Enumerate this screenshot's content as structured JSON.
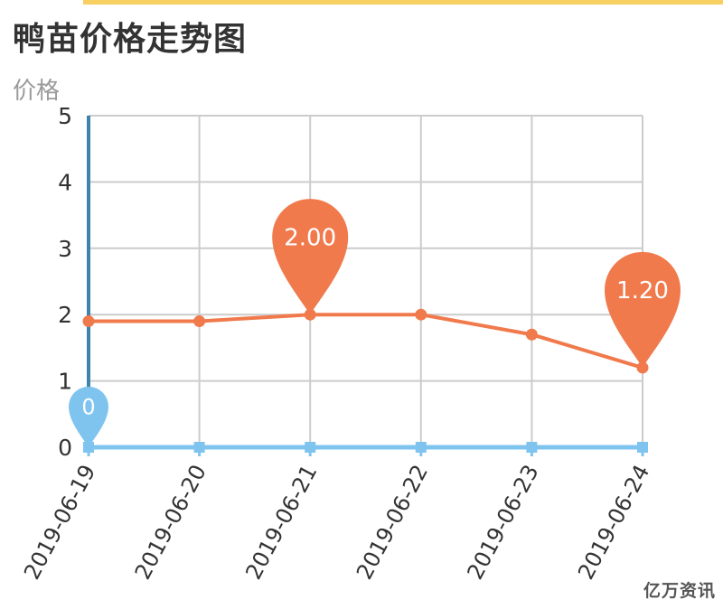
{
  "page": {
    "title": "鸭苗价格走势图",
    "ylabel": "价格",
    "watermark": "亿万资讯"
  },
  "colors": {
    "price_line": "#f07a4c",
    "zero_series": "#7fc4ef",
    "y_axis": "#3d84ad",
    "grid": "#cccccc",
    "top_bar": "#f8cf61"
  },
  "chart_data": {
    "type": "line",
    "title": "鸭苗价格走势图",
    "xlabel": "",
    "ylabel": "价格",
    "categories": [
      "2019-06-19",
      "2019-06-20",
      "2019-06-21",
      "2019-06-22",
      "2019-06-23",
      "2019-06-24"
    ],
    "ylim": [
      0,
      5
    ],
    "yticks": [
      0,
      1,
      2,
      3,
      4,
      5
    ],
    "grid": true,
    "series": [
      {
        "values": [
          1.9,
          1.9,
          2.0,
          2.0,
          1.7,
          1.2
        ],
        "color": "#f07a4c",
        "markers": [
          {
            "index": 2,
            "label": "2.00"
          },
          {
            "index": 5,
            "label": "1.20"
          }
        ]
      },
      {
        "values": [
          0,
          0,
          0,
          0,
          0,
          0
        ],
        "color": "#7fc4ef",
        "markers": [
          {
            "index": 0,
            "label": "0"
          }
        ]
      }
    ]
  }
}
